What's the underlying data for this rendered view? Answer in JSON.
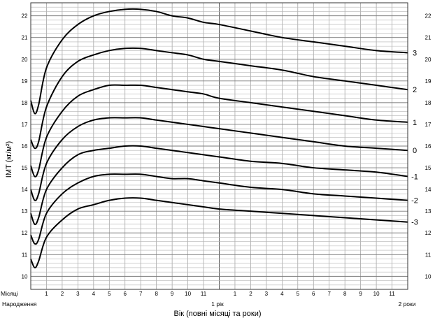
{
  "chart_data": {
    "type": "line",
    "ylabel": "ІМТ (кг/м²)",
    "xlabel": "Вік (повні місяці та роки)",
    "row_label": "Місяці",
    "milestones": {
      "birth": "Народження",
      "one_year": "1 рік",
      "two_years": "2 роки"
    },
    "month_tick_labels": [
      "1",
      "2",
      "3",
      "4",
      "5",
      "6",
      "7",
      "8",
      "9",
      "10",
      "11",
      "1",
      "2",
      "3",
      "4",
      "5",
      "6",
      "7",
      "8",
      "9",
      "10",
      "11"
    ],
    "y_ticks": [
      10,
      11,
      12,
      13,
      14,
      15,
      16,
      17,
      18,
      19,
      20,
      21,
      22
    ],
    "xlim": [
      0,
      24
    ],
    "ylim": [
      9.4,
      22.6
    ],
    "grid": true,
    "x": [
      0,
      0.25,
      0.5,
      1,
      2,
      3,
      4,
      5,
      6,
      7,
      8,
      9,
      10,
      11,
      12,
      14,
      16,
      18,
      20,
      22,
      24
    ],
    "series": [
      {
        "name": "3",
        "values": [
          18.1,
          17.5,
          17.9,
          19.6,
          20.9,
          21.6,
          22.0,
          22.2,
          22.3,
          22.3,
          22.2,
          22.0,
          21.9,
          21.7,
          21.6,
          21.3,
          21.0,
          20.8,
          20.6,
          20.4,
          20.3
        ]
      },
      {
        "name": "2",
        "values": [
          16.3,
          15.9,
          16.2,
          17.8,
          19.2,
          19.9,
          20.2,
          20.4,
          20.5,
          20.5,
          20.4,
          20.3,
          20.2,
          20.0,
          19.9,
          19.7,
          19.5,
          19.2,
          19.0,
          18.8,
          18.6
        ]
      },
      {
        "name": "1",
        "values": [
          15.1,
          14.6,
          14.9,
          16.4,
          17.6,
          18.3,
          18.6,
          18.8,
          18.8,
          18.8,
          18.7,
          18.6,
          18.5,
          18.4,
          18.2,
          18.0,
          17.8,
          17.6,
          17.4,
          17.2,
          17.1
        ]
      },
      {
        "name": "0",
        "values": [
          14.0,
          13.5,
          13.8,
          15.2,
          16.3,
          16.9,
          17.2,
          17.3,
          17.3,
          17.3,
          17.2,
          17.1,
          17.0,
          16.9,
          16.8,
          16.6,
          16.4,
          16.2,
          16.0,
          15.9,
          15.8
        ]
      },
      {
        "name": "-1",
        "values": [
          12.9,
          12.4,
          12.7,
          14.0,
          15.0,
          15.6,
          15.8,
          15.9,
          16.0,
          16.0,
          15.9,
          15.8,
          15.7,
          15.6,
          15.5,
          15.3,
          15.2,
          15.0,
          14.9,
          14.8,
          14.6
        ]
      },
      {
        "name": "-2",
        "values": [
          11.9,
          11.5,
          11.7,
          12.9,
          13.8,
          14.3,
          14.6,
          14.7,
          14.7,
          14.7,
          14.6,
          14.5,
          14.5,
          14.4,
          14.3,
          14.1,
          14.0,
          13.8,
          13.7,
          13.6,
          13.5
        ]
      },
      {
        "name": "-3",
        "values": [
          10.8,
          10.4,
          10.7,
          11.8,
          12.6,
          13.1,
          13.3,
          13.5,
          13.6,
          13.6,
          13.5,
          13.4,
          13.3,
          13.2,
          13.1,
          13.0,
          12.9,
          12.8,
          12.7,
          12.6,
          12.5
        ]
      }
    ]
  }
}
